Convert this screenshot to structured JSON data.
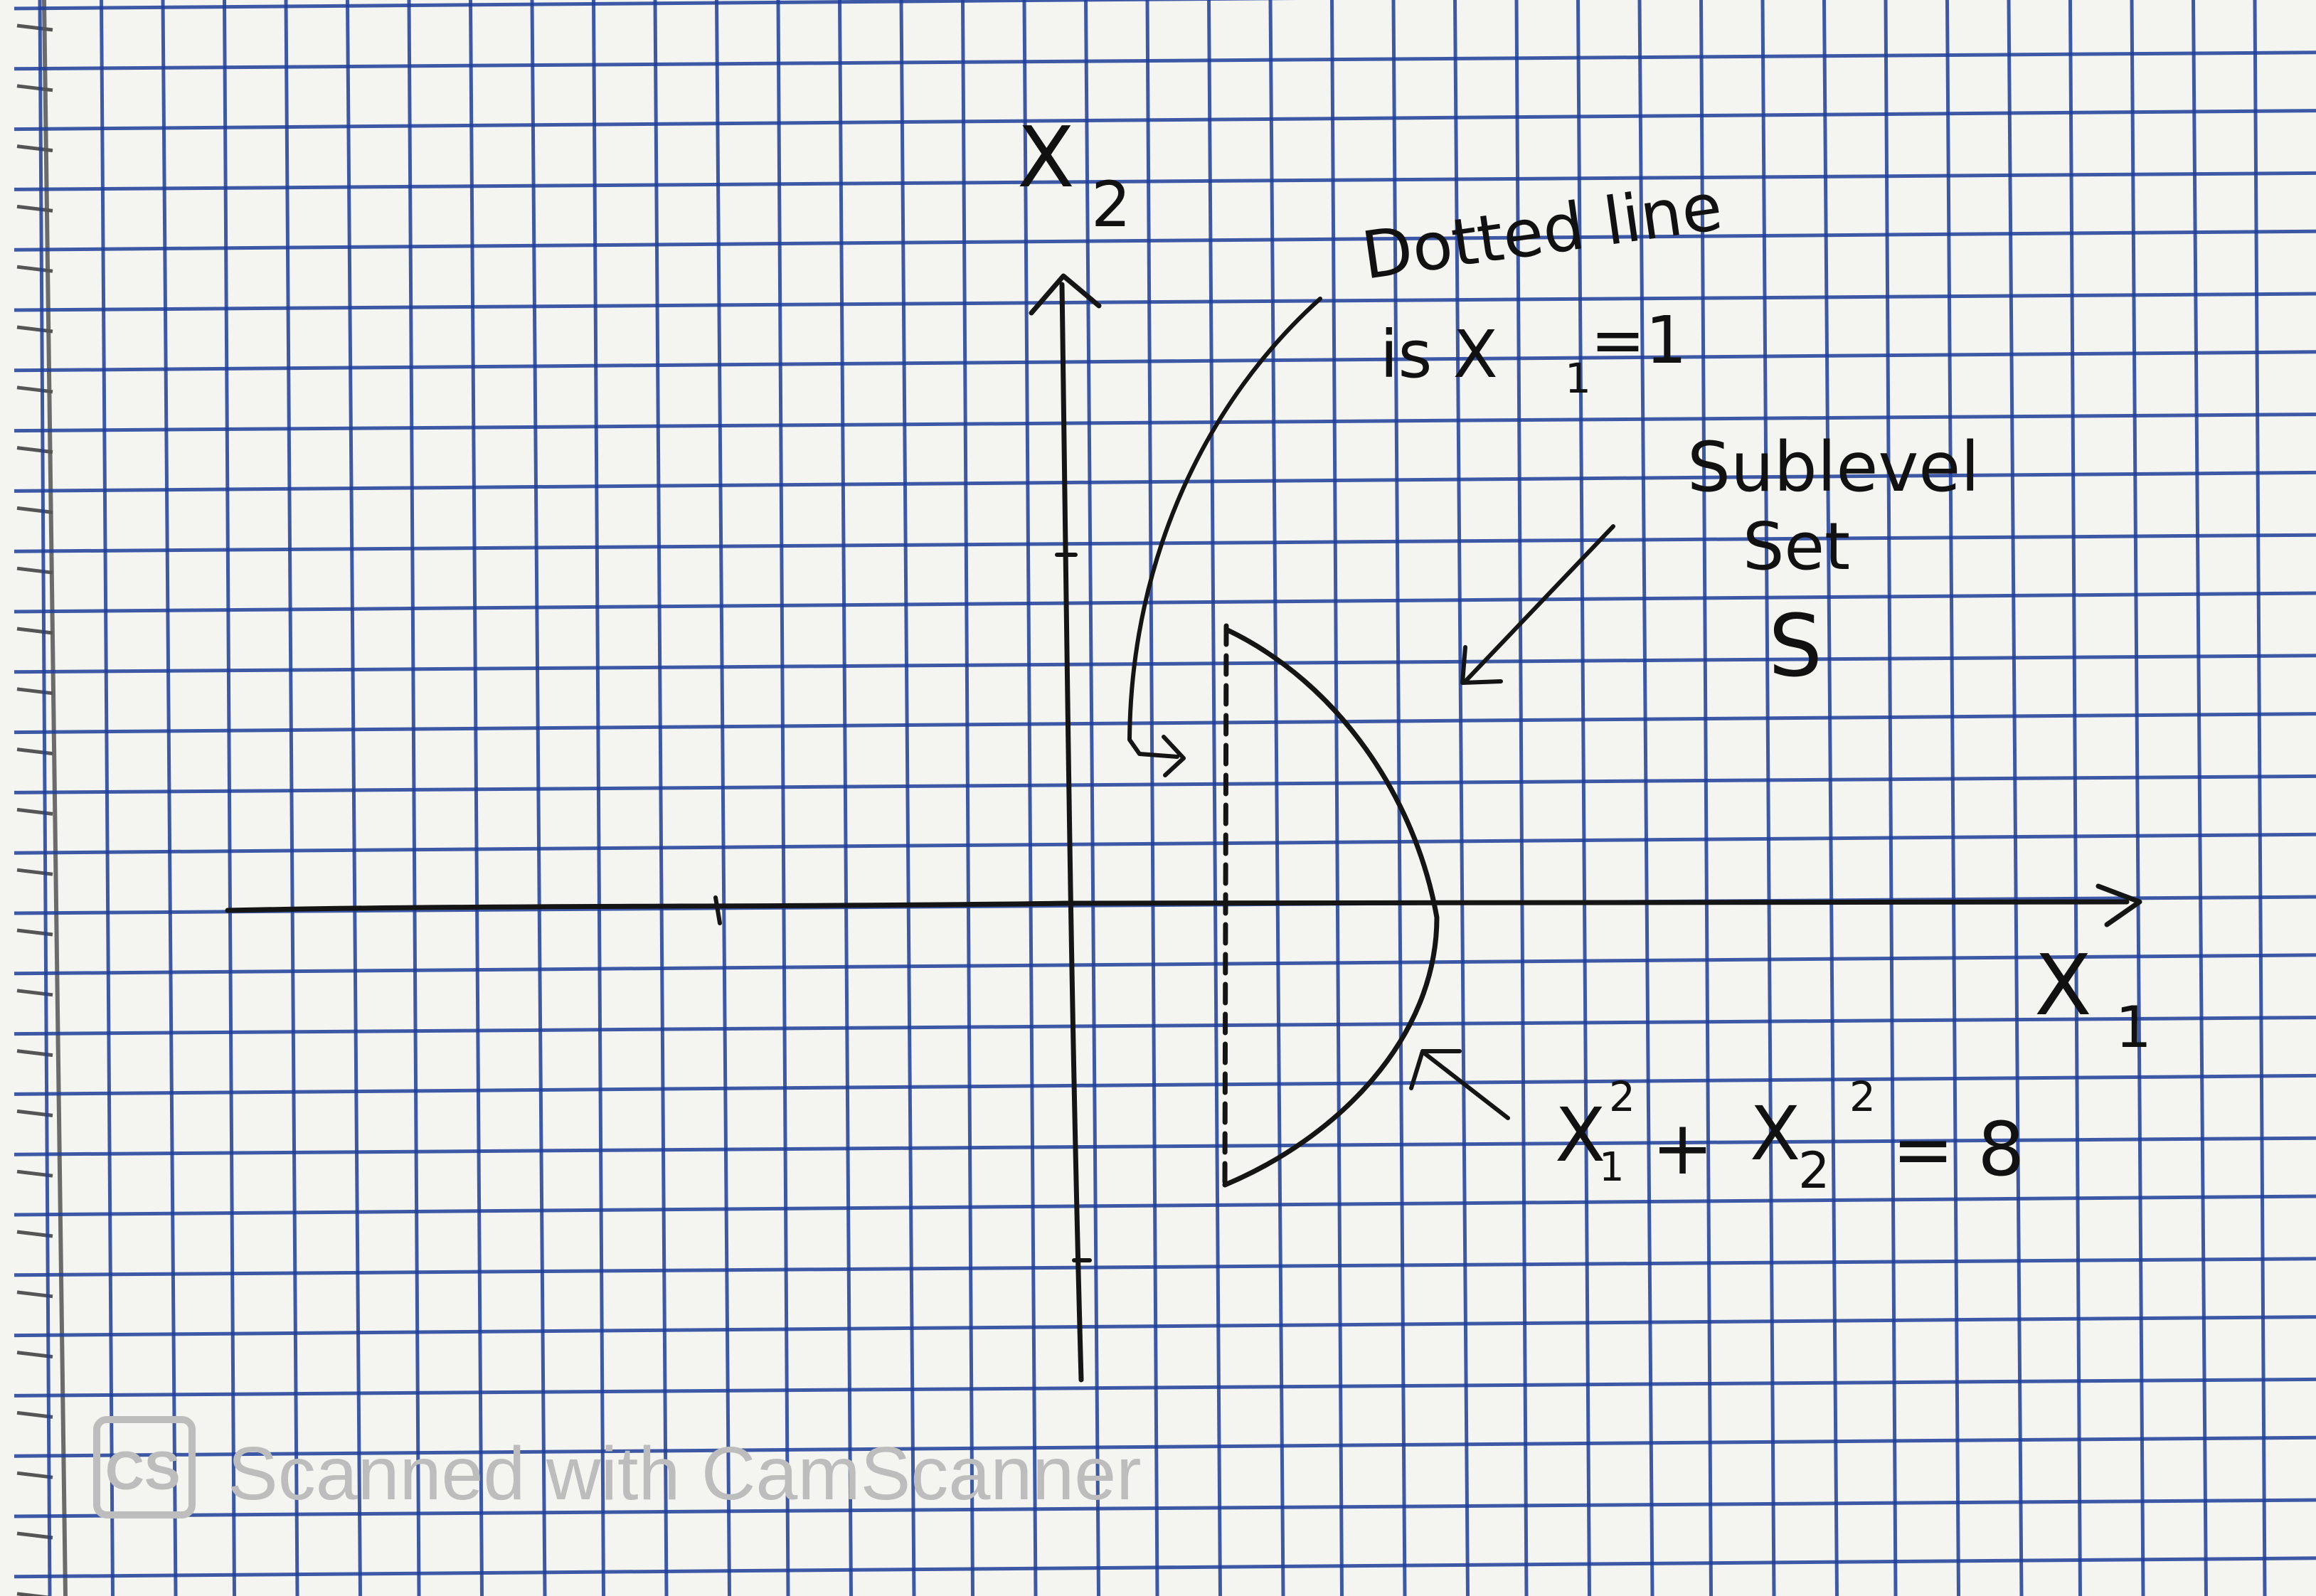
{
  "axes": {
    "horizontal_label": "X",
    "horizontal_subscript": "1",
    "vertical_label": "X",
    "vertical_subscript": "2"
  },
  "annotations": {
    "dotted_line_line1": "Dotted line",
    "dotted_line_line2": "is X",
    "dotted_line_sub": "1",
    "dotted_line_eq": "=1",
    "sublevel_line1": "Sublevel",
    "sublevel_line2": "Set",
    "sublevel_line3": "S",
    "circle_x1": "X",
    "circle_x1_sub": "1",
    "circle_x1_sup": "2",
    "circle_plus": "+",
    "circle_x2": "X",
    "circle_x2_sub": "2",
    "circle_x2_sup": "2",
    "circle_rhs": "= 8"
  },
  "watermark": {
    "logo": "CS",
    "text": "Scanned with CamScanner"
  },
  "colors": {
    "paper": "#f4f4f1",
    "grid": "#1e3f9a",
    "ink": "#151515",
    "watermark": "#bdbdbd"
  }
}
